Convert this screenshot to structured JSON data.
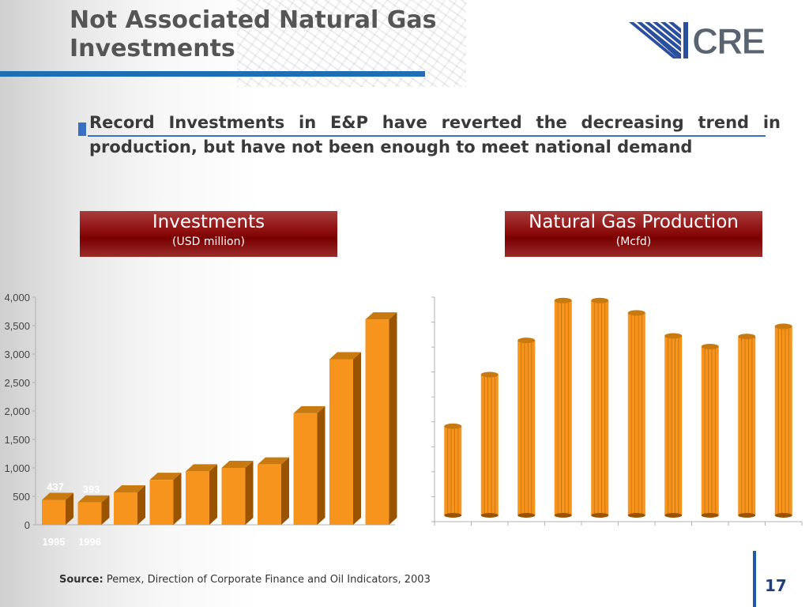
{
  "slide": {
    "title": "Not Associated Natural Gas Investments",
    "headline": "Record Investments in E&P have reverted the decreasing trend in production, but have not been enough to meet national demand",
    "logo_text": "CRE",
    "source_label": "Source:",
    "source_text": "Pemex, Direction of Corporate Finance and Oil Indicators, 2003",
    "page_number": "17"
  },
  "panels": {
    "investments": {
      "title": "Investments",
      "subtitle": "(USD million)"
    },
    "production": {
      "title": "Natural Gas Production",
      "subtitle": "(Mcfd)"
    }
  },
  "colors": {
    "bar_front": "#f7941d",
    "bar_side": "#9a5400",
    "bar_top": "#c87a10",
    "axis": "#b0b0b0",
    "panel_red": "#8c0d0d",
    "accent_blue": "#1f6db5"
  },
  "chart_data": [
    {
      "type": "bar",
      "ylim": [
        0,
        4000
      ],
      "yticks": [
        "0",
        "500",
        "1,000",
        "1,500",
        "2,000",
        "2,500",
        "3,000",
        "3,500",
        "4,000"
      ],
      "categories": [
        "1995",
        "1996",
        "",
        "",
        "",
        "",
        "",
        "",
        "",
        ""
      ],
      "values": [
        437,
        393,
        570,
        790,
        940,
        1000,
        1060,
        1960,
        2910,
        3610
      ],
      "data_labels": [
        "437",
        "393",
        "",
        "",
        "",
        "",
        "",
        "",
        "",
        ""
      ]
    },
    {
      "type": "bar",
      "ylim": [
        0,
        4000
      ],
      "categories": [
        "",
        "",
        "",
        "",
        "",
        "",
        "",
        "",
        "",
        ""
      ],
      "values": [
        1700,
        2620,
        3230,
        3940,
        3940,
        3720,
        3310,
        3120,
        3300,
        3480
      ]
    }
  ]
}
